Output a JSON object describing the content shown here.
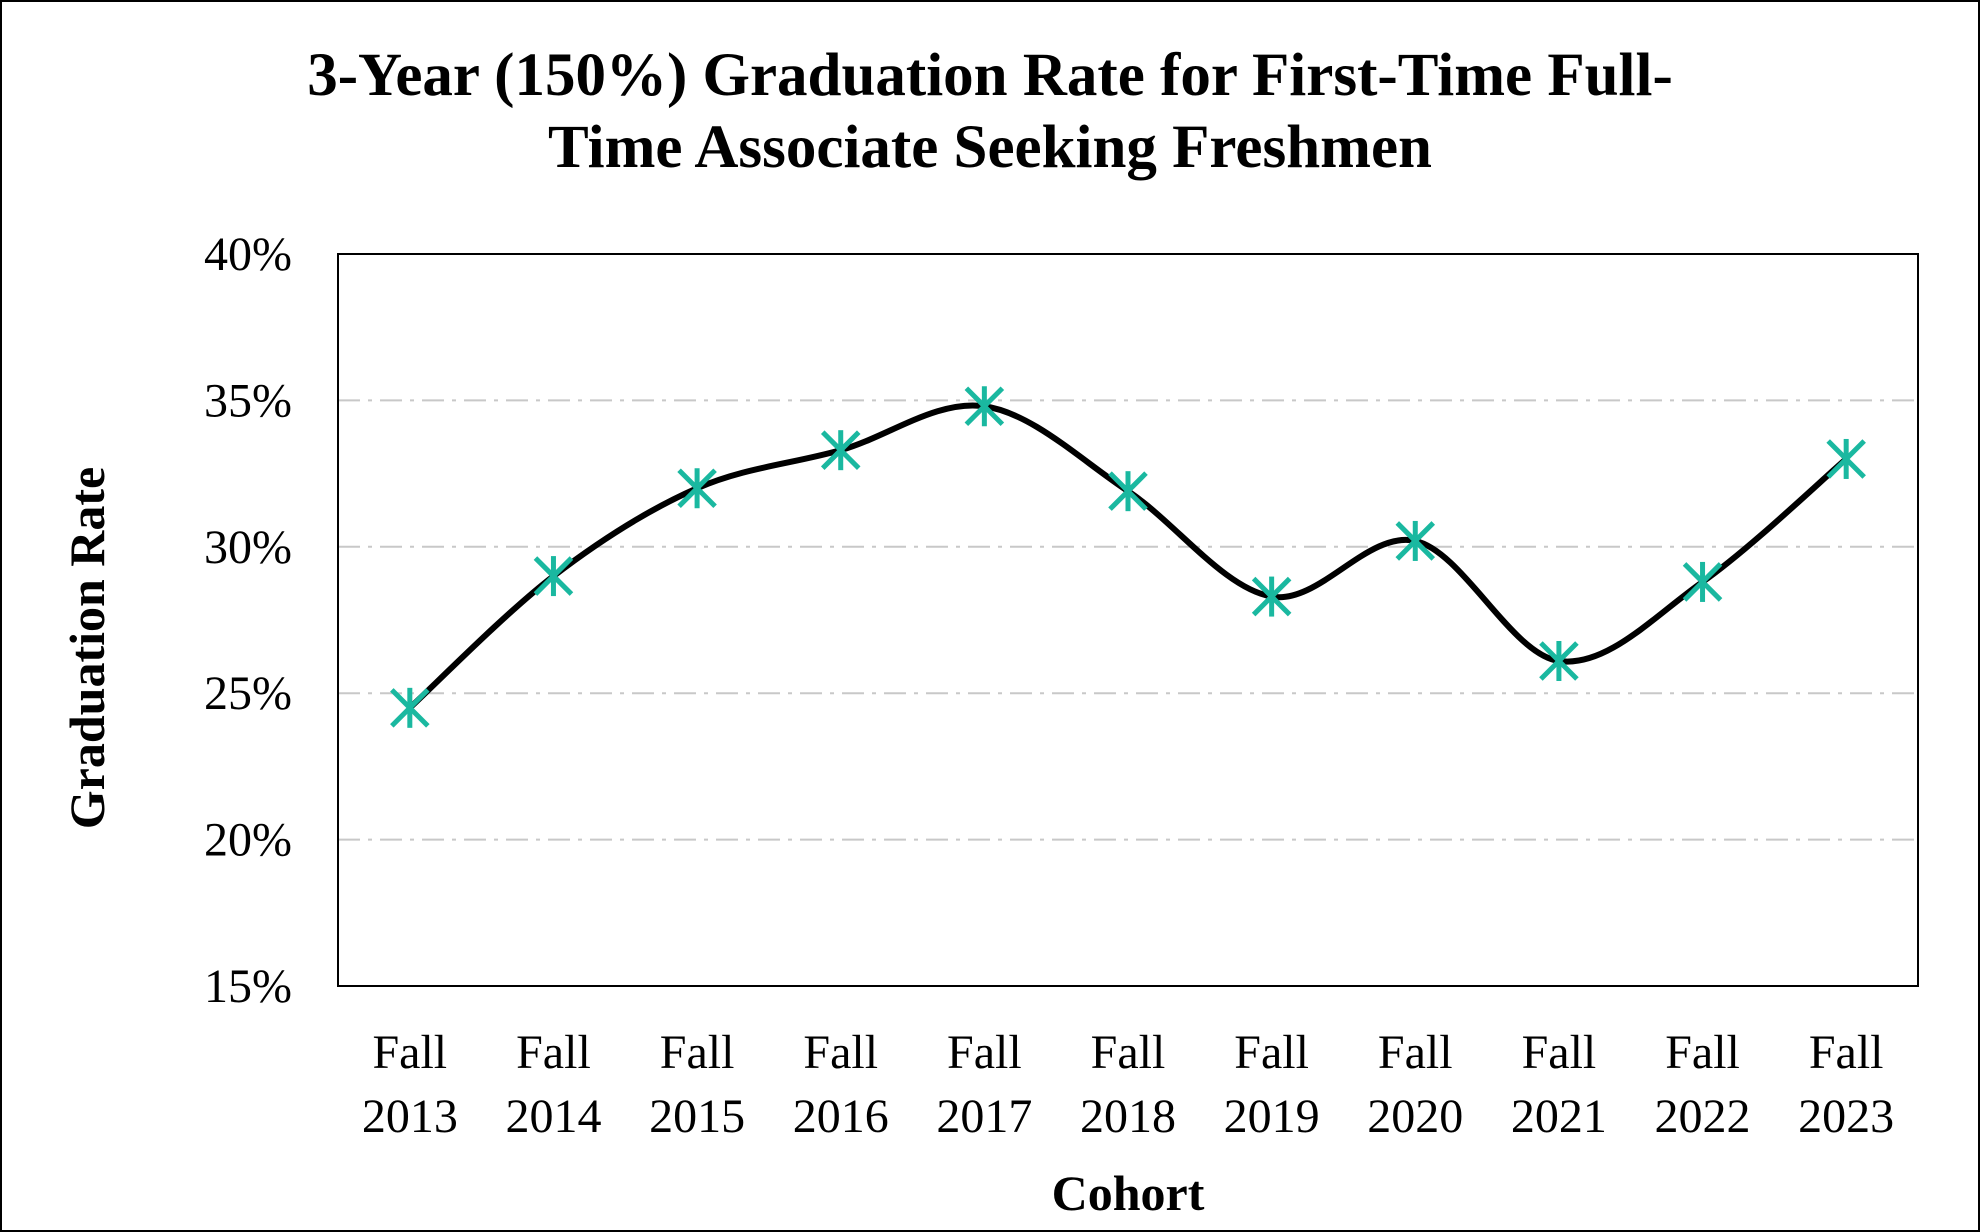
{
  "chart_data": {
    "type": "line",
    "title_lines": [
      "3-Year (150%) Graduation Rate for First-Time Full-",
      "Time Associate Seeking Freshmen"
    ],
    "xlabel": "Cohort",
    "ylabel": "Graduation Rate",
    "categories": [
      [
        "Fall",
        "2013"
      ],
      [
        "Fall",
        "2014"
      ],
      [
        "Fall",
        "2015"
      ],
      [
        "Fall",
        "2016"
      ],
      [
        "Fall",
        "2017"
      ],
      [
        "Fall",
        "2018"
      ],
      [
        "Fall",
        "2019"
      ],
      [
        "Fall",
        "2020"
      ],
      [
        "Fall",
        "2021"
      ],
      [
        "Fall",
        "2022"
      ],
      [
        "Fall",
        "2023"
      ]
    ],
    "series": [
      {
        "values": [
          24.5,
          29.0,
          32.0,
          33.3,
          34.8,
          31.9,
          28.3,
          30.2,
          26.1,
          28.8,
          33.0
        ],
        "line_color": "#000000",
        "marker_color": "#1ab8a0",
        "marker": "asterisk",
        "smooth": true
      }
    ],
    "ylim": [
      15,
      40
    ],
    "yticks": [
      15,
      20,
      25,
      30,
      35,
      40
    ],
    "ytick_labels": [
      "15%",
      "20%",
      "25%",
      "30%",
      "35%",
      "40%"
    ],
    "grid": "horizontal dash-dot",
    "grid_color": "#c8c8c8",
    "legend": "none"
  }
}
